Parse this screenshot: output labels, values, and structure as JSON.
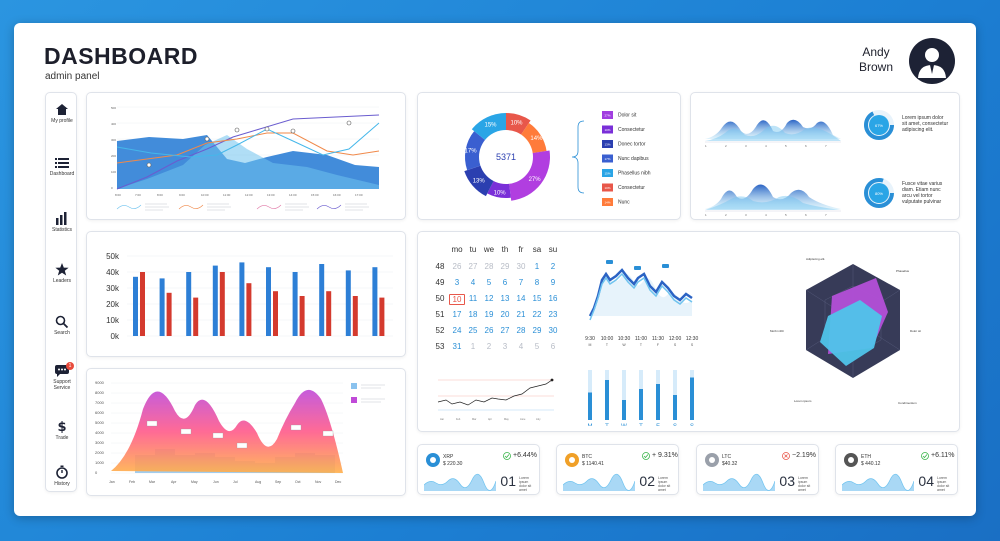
{
  "header": {
    "title": "DASHBOARD",
    "subtitle": "admin panel",
    "user_first": "Andy",
    "user_last": "Brown"
  },
  "sidebar": {
    "items": [
      {
        "label": "My profile",
        "icon": "home-icon"
      },
      {
        "label": "Dashboard",
        "icon": "list-icon"
      },
      {
        "label": "Statistics",
        "icon": "bar-chart-icon"
      },
      {
        "label": "Leaders",
        "icon": "star-icon"
      },
      {
        "label": "Search",
        "icon": "search-icon"
      },
      {
        "label": "Support Service",
        "icon": "chat-icon",
        "badge": "1"
      },
      {
        "label": "Trade",
        "icon": "dollar-icon"
      },
      {
        "label": "History",
        "icon": "stopwatch-icon"
      }
    ]
  },
  "donut": {
    "center": "5371",
    "segments": [
      {
        "label": "10%",
        "value": 10,
        "color": "#e8574a"
      },
      {
        "label": "14%",
        "value": 14,
        "color": "#ff7b3a"
      },
      {
        "label": "27%",
        "value": 27,
        "color": "#b13ee0"
      },
      {
        "label": "10%",
        "value": 10,
        "color": "#7a2fd8"
      },
      {
        "label": "13%",
        "value": 13,
        "color": "#2b3fb0"
      },
      {
        "label": "17%",
        "value": 17,
        "color": "#3a5fd0"
      },
      {
        "label": "15%",
        "value": 15,
        "color": "#2aa5e6"
      }
    ],
    "legend": [
      {
        "pct": "27%",
        "text": "Dolor sit",
        "color": "#a13ee0"
      },
      {
        "pct": "10%",
        "text": "Consectetur",
        "color": "#7a2fd8"
      },
      {
        "pct": "13%",
        "text": "Donec tortor",
        "color": "#2b3fb0"
      },
      {
        "pct": "17%",
        "text": "Nunc dapibus",
        "color": "#3a5fd0"
      },
      {
        "pct": "15%",
        "text": "Phasellus nibh",
        "color": "#2aa5e6"
      },
      {
        "pct": "10%",
        "text": "Consectetur",
        "color": "#e8574a"
      },
      {
        "pct": "14%",
        "text": "Nunc",
        "color": "#ff7b3a"
      }
    ]
  },
  "info_a": {
    "circle": "67%",
    "text1": "Lorem ipsum dolor",
    "text2": "sit amet, consectetur",
    "text3": "adipiscing elit."
  },
  "info_b": {
    "circle": "80%",
    "text1": "Fusce vitae varius",
    "text2": "diam. Etiam nunc",
    "text3": "arcu vel tortor",
    "text4": "vulputate pulvinar"
  },
  "bars": {
    "y_ticks": [
      "50k",
      "40k",
      "30k",
      "20k",
      "10k",
      "0k"
    ],
    "chart_data": {
      "type": "bar",
      "ylim": [
        0,
        50
      ],
      "series": [
        {
          "values": [
            37,
            36,
            40,
            44,
            46,
            43,
            40,
            45,
            41,
            43
          ],
          "color": "#2d7fd6"
        },
        {
          "values": [
            40,
            27,
            24,
            40,
            33,
            28,
            25,
            28,
            25,
            24
          ],
          "color": "#d43a2e"
        }
      ]
    }
  },
  "calendar": {
    "headers": [
      "mo",
      "tu",
      "we",
      "th",
      "fr",
      "sa",
      "su"
    ],
    "weeks": [
      {
        "num": "48",
        "days": [
          "26",
          "27",
          "28",
          "29",
          "30",
          "1",
          "2"
        ],
        "dim": [
          true,
          true,
          true,
          true,
          true,
          false,
          false
        ]
      },
      {
        "num": "49",
        "days": [
          "3",
          "4",
          "5",
          "6",
          "7",
          "8",
          "9"
        ],
        "dim": [
          false,
          false,
          false,
          false,
          false,
          false,
          false
        ]
      },
      {
        "num": "50",
        "days": [
          "10",
          "11",
          "12",
          "13",
          "14",
          "15",
          "16"
        ],
        "dim": [
          false,
          false,
          false,
          false,
          false,
          false,
          false
        ]
      },
      {
        "num": "51",
        "days": [
          "17",
          "18",
          "19",
          "20",
          "21",
          "22",
          "23"
        ],
        "dim": [
          false,
          false,
          false,
          false,
          false,
          false,
          false
        ]
      },
      {
        "num": "52",
        "days": [
          "24",
          "25",
          "26",
          "27",
          "28",
          "29",
          "30"
        ],
        "dim": [
          false,
          false,
          false,
          false,
          false,
          false,
          false
        ]
      },
      {
        "num": "53",
        "days": [
          "31",
          "1",
          "2",
          "3",
          "4",
          "5",
          "6"
        ],
        "dim": [
          false,
          true,
          true,
          true,
          true,
          true,
          true
        ]
      }
    ],
    "selected": "10"
  },
  "timeline": {
    "times": [
      "9:30",
      "10:00",
      "10:30",
      "11:00",
      "11:30",
      "12:00",
      "12:30"
    ],
    "days": [
      "M",
      "T",
      "W",
      "T",
      "F",
      "S",
      "S"
    ],
    "levels": [
      0.55,
      0.8,
      0.4,
      0.62,
      0.72,
      0.5,
      0.85
    ]
  },
  "coins": [
    {
      "name": "XRP",
      "price": "$ 220.30",
      "pct": "+6.44%",
      "num": "01",
      "up": true
    },
    {
      "name": "BTC",
      "price": "$ 1140.41",
      "pct": "+ 9.31%",
      "num": "02",
      "up": true
    },
    {
      "name": "LTC",
      "price": "$40.32",
      "pct": "−2.19%",
      "num": "03",
      "up": false
    },
    {
      "name": "ETH",
      "price": "$ 440.12",
      "pct": "+6.11%",
      "num": "04",
      "up": true
    }
  ],
  "coin_note": "Lorem ipsum dolor sit amet",
  "radar": {
    "labels": [
      "Adipiscing elit.",
      "Phasellus",
      "Dolor sit",
      "Condimentum",
      "Lorem ipsum",
      "Morbi nibh"
    ]
  },
  "colors": {
    "accent": "#2a8fd6",
    "dark": "#1d2235",
    "red": "#d43a2e"
  }
}
